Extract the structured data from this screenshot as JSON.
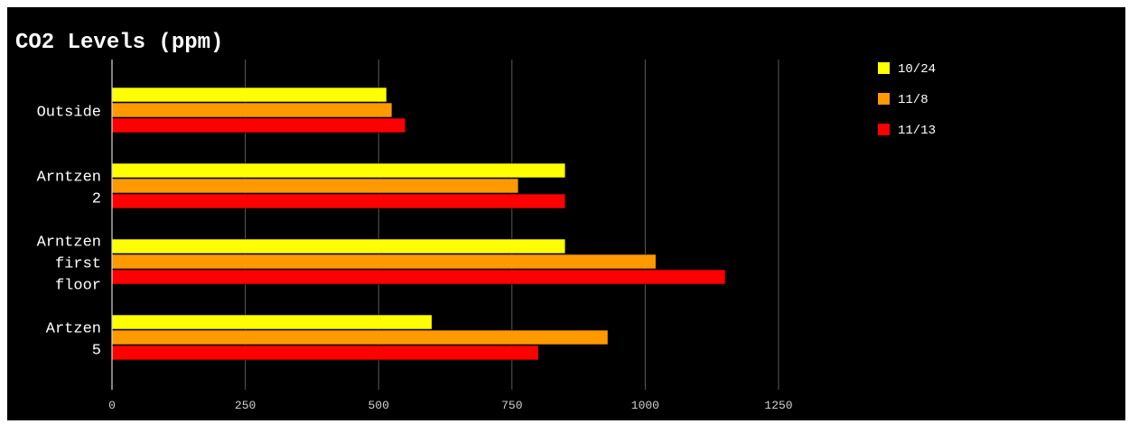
{
  "chart_data": {
    "type": "bar",
    "orientation": "horizontal",
    "title": "CO2 Levels (ppm)",
    "xlabel": "",
    "ylabel": "",
    "categories": [
      [
        "Outside"
      ],
      [
        "Arntzen",
        "2"
      ],
      [
        "Arntzen",
        "first",
        "floor"
      ],
      [
        "Artzen",
        "5"
      ]
    ],
    "series": [
      {
        "name": "10/24",
        "color": "#ffff00",
        "values": [
          515,
          850,
          850,
          600
        ]
      },
      {
        "name": "11/8",
        "color": "#ff9900",
        "values": [
          525,
          762,
          1020,
          930
        ]
      },
      {
        "name": "11/13",
        "color": "#ff0000",
        "values": [
          550,
          850,
          1150,
          800
        ]
      }
    ],
    "xlim": [
      0,
      1250
    ],
    "xticks": [
      0,
      250,
      500,
      750,
      1000,
      1250
    ],
    "grid": true,
    "legend_position": "top-right",
    "background": "#000000"
  }
}
